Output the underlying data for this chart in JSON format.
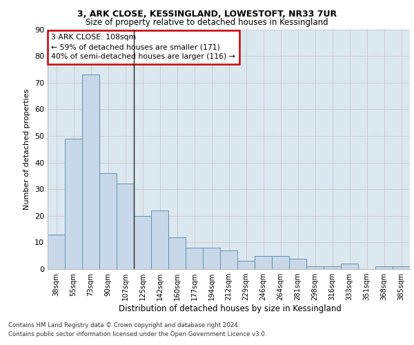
{
  "title1": "3, ARK CLOSE, KESSINGLAND, LOWESTOFT, NR33 7UR",
  "title2": "Size of property relative to detached houses in Kessingland",
  "xlabel": "Distribution of detached houses by size in Kessingland",
  "ylabel": "Number of detached properties",
  "categories": [
    "38sqm",
    "55sqm",
    "73sqm",
    "90sqm",
    "107sqm",
    "125sqm",
    "142sqm",
    "160sqm",
    "177sqm",
    "194sqm",
    "212sqm",
    "229sqm",
    "246sqm",
    "264sqm",
    "281sqm",
    "298sqm",
    "316sqm",
    "333sqm",
    "351sqm",
    "368sqm",
    "385sqm"
  ],
  "values": [
    13,
    49,
    73,
    36,
    32,
    20,
    22,
    12,
    8,
    8,
    7,
    3,
    5,
    5,
    4,
    1,
    1,
    2,
    0,
    1,
    1
  ],
  "bar_color": "#c8d8e8",
  "bar_edge_color": "#6090b0",
  "vline_bin_index": 4,
  "vline_color": "#222222",
  "annotation_text": "3 ARK CLOSE: 108sqm\n← 59% of detached houses are smaller (171)\n40% of semi-detached houses are larger (116) →",
  "annotation_box_color": "#ffffff",
  "annotation_box_edge": "#cc0000",
  "ylim": [
    0,
    90
  ],
  "yticks": [
    0,
    10,
    20,
    30,
    40,
    50,
    60,
    70,
    80,
    90
  ],
  "grid_color": "#cccccc",
  "bg_color": "#dce8f0",
  "footer1": "Contains HM Land Registry data © Crown copyright and database right 2024.",
  "footer2": "Contains public sector information licensed under the Open Government Licence v3.0."
}
